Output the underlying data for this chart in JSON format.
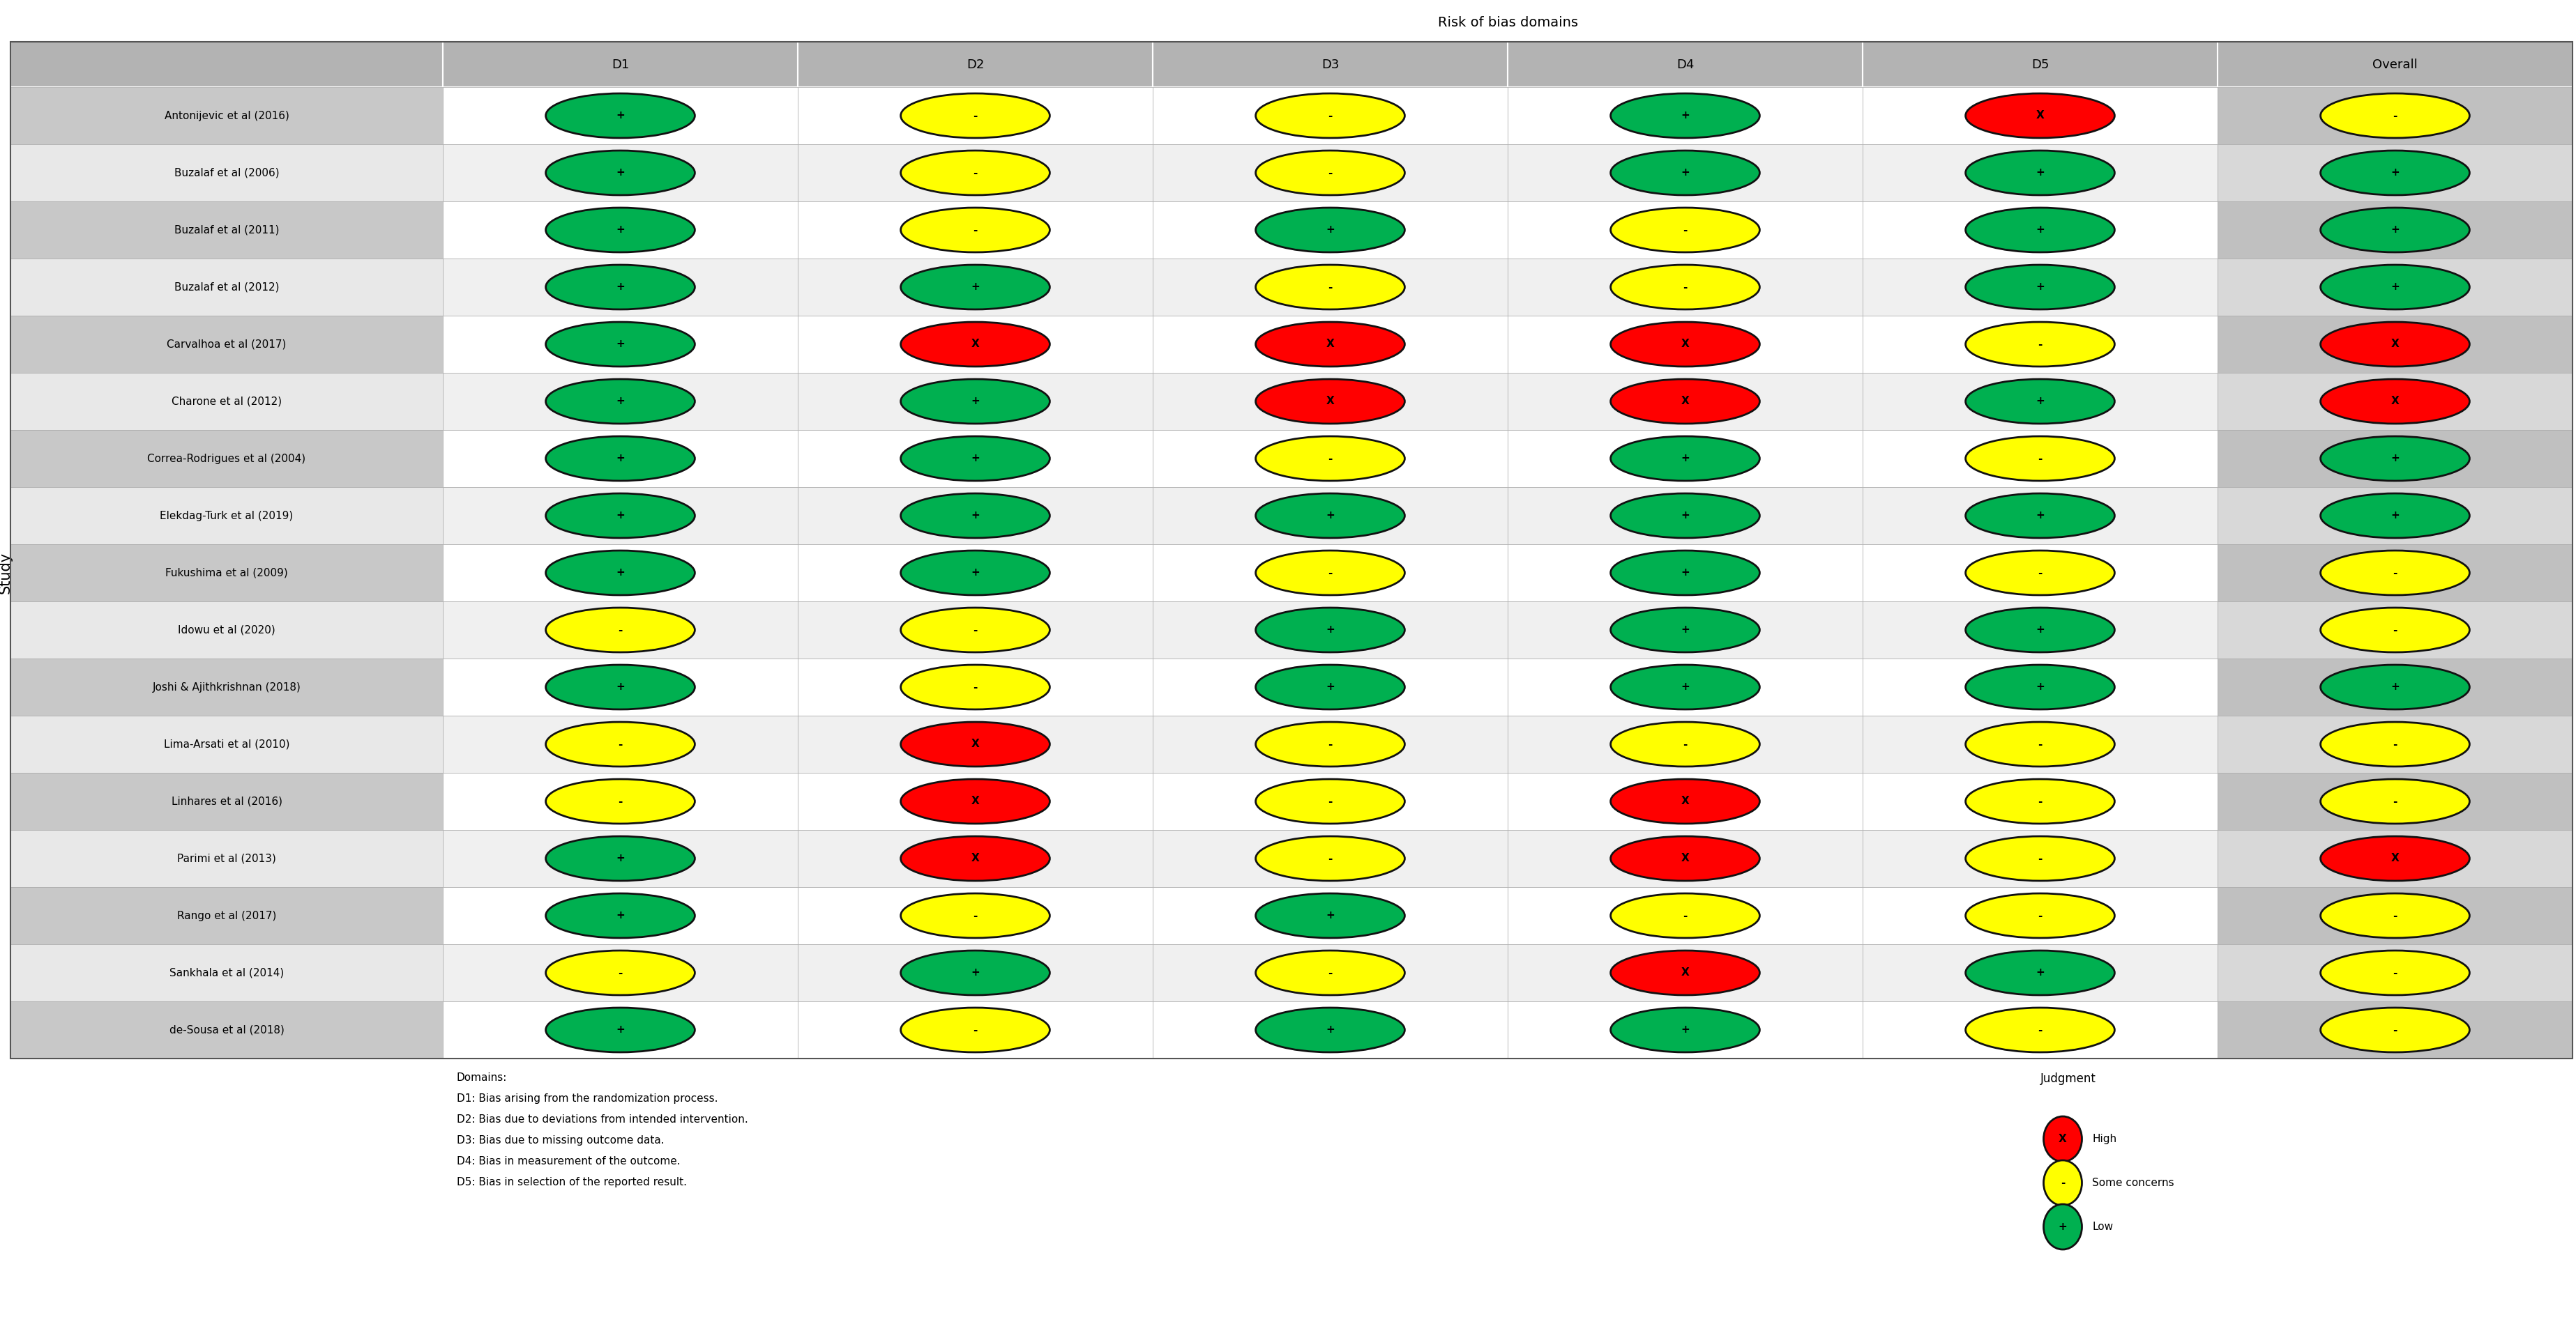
{
  "title": "Risk of bias domains",
  "ylabel": "Study",
  "columns": [
    "D1",
    "D2",
    "D3",
    "D4",
    "D5",
    "Overall"
  ],
  "studies": [
    "Antonijevic et al (2016)",
    "Buzalaf et al (2006)",
    "Buzalaf et al (2011)",
    "Buzalaf et al (2012)",
    "Carvalhoa et al (2017)",
    "Charone et al (2012)",
    "Correa-Rodrigues et al (2004)",
    "Elekdag-Turk et al (2019)",
    "Fukushima et al (2009)",
    "Idowu et al (2020)",
    "Joshi & Ajithkrishnan (2018)",
    "Lima-Arsati et al (2010)",
    "Linhares et al (2016)",
    "Parimi et al (2013)",
    "Rango et al (2017)",
    "Sankhala et al (2014)",
    "de-Sousa et al (2018)"
  ],
  "ratings": [
    [
      "G",
      "Y",
      "Y",
      "G",
      "R",
      "Y"
    ],
    [
      "G",
      "Y",
      "Y",
      "G",
      "G",
      "G"
    ],
    [
      "G",
      "Y",
      "G",
      "Y",
      "G",
      "G"
    ],
    [
      "G",
      "G",
      "Y",
      "Y",
      "G",
      "G"
    ],
    [
      "G",
      "R",
      "R",
      "R",
      "Y",
      "R"
    ],
    [
      "G",
      "G",
      "R",
      "R",
      "G",
      "R"
    ],
    [
      "G",
      "G",
      "Y",
      "G",
      "Y",
      "G"
    ],
    [
      "G",
      "G",
      "G",
      "G",
      "G",
      "G"
    ],
    [
      "G",
      "G",
      "Y",
      "G",
      "Y",
      "Y"
    ],
    [
      "Y",
      "Y",
      "G",
      "G",
      "G",
      "Y"
    ],
    [
      "G",
      "Y",
      "G",
      "G",
      "G",
      "G"
    ],
    [
      "Y",
      "R",
      "Y",
      "Y",
      "Y",
      "Y"
    ],
    [
      "Y",
      "R",
      "Y",
      "R",
      "Y",
      "Y"
    ],
    [
      "G",
      "R",
      "Y",
      "R",
      "Y",
      "R"
    ],
    [
      "G",
      "Y",
      "G",
      "Y",
      "Y",
      "Y"
    ],
    [
      "Y",
      "G",
      "Y",
      "R",
      "G",
      "Y"
    ],
    [
      "G",
      "Y",
      "G",
      "G",
      "Y",
      "Y"
    ]
  ],
  "color_map": {
    "G": "#00b050",
    "Y": "#ffff00",
    "R": "#ff0000"
  },
  "symbol_map": {
    "G": "+",
    "Y": "-",
    "R": "X"
  },
  "domains_text": [
    "Domains:",
    "D1: Bias arising from the randomization process.",
    "D2: Bias due to deviations from intended intervention.",
    "D3: Bias due to missing outcome data.",
    "D4: Bias in measurement of the outcome.",
    "D5: Bias in selection of the reported result."
  ],
  "legend_title": "Judgment",
  "legend_items": [
    {
      "label": "High",
      "color": "#ff0000",
      "symbol": "X"
    },
    {
      "label": "Some concerns",
      "color": "#ffff00",
      "symbol": "-"
    },
    {
      "label": "Low",
      "color": "#00b050",
      "symbol": "+"
    }
  ],
  "header_bg": "#b3b3b3",
  "row_bg_dark": "#c8c8c8",
  "row_bg_light": "#e8e8e8",
  "overall_bg_dark": "#c0c0c0",
  "overall_bg_light": "#d8d8d8",
  "cell_bg_white": "#ffffff",
  "cell_bg_light": "#f0f0f0",
  "text_color": "#000000",
  "font_size": 11,
  "header_font_size": 13,
  "title_font_size": 14,
  "symbol_font_size": 11
}
